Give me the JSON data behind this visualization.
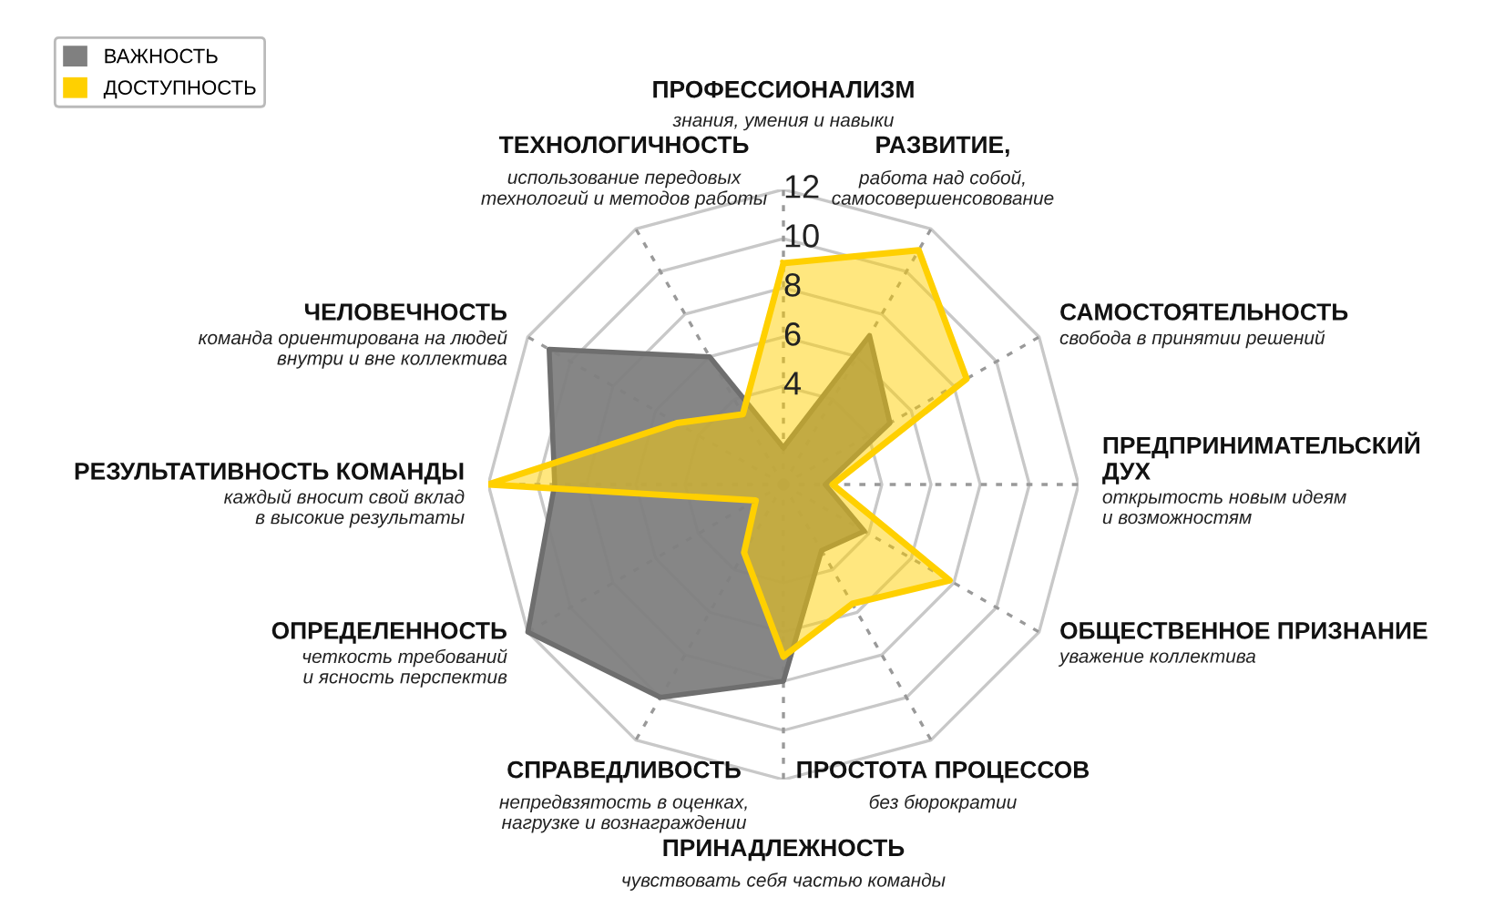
{
  "chart_data": {
    "type": "radar",
    "categories": [
      "ПРОФЕССИОНАЛИЗМ\nзнания, умения и навыки",
      "РАЗВИТИЕ,\nработа над собой,\nсамосовершенсовование",
      "САМОСТОЯТЕЛЬНОСТЬ\nсвобода в принятии решений",
      "ПРЕДПРИНИМАТЕЛЬСКИЙ\nДУХ\nоткрытость новым идеям\nи возможностям",
      "ОБЩЕСТВЕННОЕ ПРИЗНАНИЕ\nуважение коллектива",
      "ПРОСТОТА ПРОЦЕССОВ\nбез бюрократии",
      "ПРИНАДЛЕЖНОСТЬ\nчувствовать себя частью команды",
      "СПРАВЕДЛИВОСТЬ\nнепредвзятость в оценках,\nнагрузке и вознаграждении",
      "ОПРЕДЕЛЕННОСТЬ\nчеткость требований\nи ясность перспектив",
      "РЕЗУЛЬТАТИВНОСТЬ КОМАНДЫ\nкаждый вносит свой вклад\nв высокие результаты",
      "ЧЕЛОВЕЧНОСТЬ\nкоманда ориентирована на людей\nвнутри и вне коллектива",
      "ТЕХНОЛОГИЧНОСТЬ\nиспользование передовых\nтехнологий и методов работы"
    ],
    "series": [
      {
        "name": "ВАЖНОСТЬ",
        "color": "#808080",
        "values": [
          1.5,
          7,
          5,
          1.7,
          3.8,
          3.1,
          8,
          10,
          12,
          9.3,
          11,
          6
        ]
      },
      {
        "name": "ДОСТУПНОСТЬ",
        "color": "#ffd000",
        "values": [
          9,
          11,
          8.6,
          2,
          7.8,
          5.6,
          7,
          3.2,
          1.3,
          12,
          5,
          3.3
        ]
      }
    ],
    "ylim": [
      0,
      12
    ],
    "yticks": [
      4,
      6,
      8,
      10,
      12
    ],
    "grid": true,
    "legend": "top left"
  }
}
